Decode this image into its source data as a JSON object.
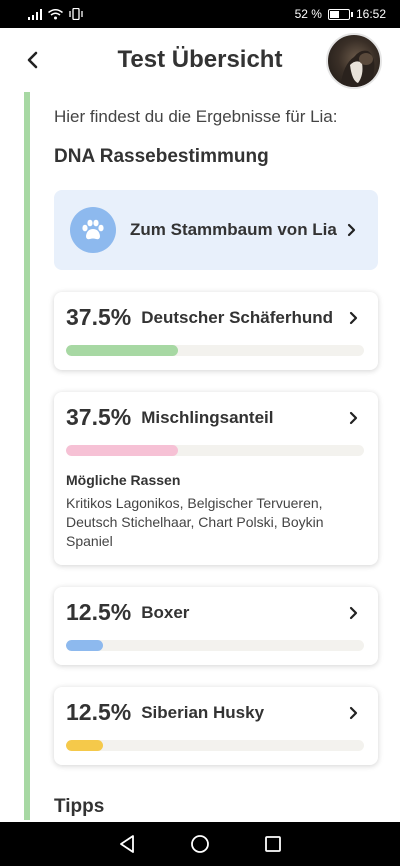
{
  "status": {
    "battery": "52 %",
    "time": "16:52",
    "battery_level": 0.52
  },
  "header": {
    "title": "Test Übersicht"
  },
  "intro": "Hier findest du die Ergebnisse für Lia:",
  "section_title": "DNA Rassebestimmung",
  "pedigree_link": {
    "label": "Zum Stammbaum von Lia"
  },
  "breeds": [
    {
      "percent": "37.5%",
      "name": "Deutscher Schäferhund",
      "fraction": 0.375,
      "color": "#a7d8a3"
    },
    {
      "percent": "37.5%",
      "name": "Mischlingsanteil",
      "fraction": 0.375,
      "color": "#f6c1d5",
      "sub_title": "Mögliche Rassen",
      "sub_text": "Kritikos Lagonikos, Belgischer Tervueren, Deutsch Stichelhaar, Chart Polski, Boykin Spaniel"
    },
    {
      "percent": "12.5%",
      "name": "Boxer",
      "fraction": 0.125,
      "color": "#8db9ee"
    },
    {
      "percent": "12.5%",
      "name": "Siberian Husky",
      "fraction": 0.125,
      "color": "#f5c94a"
    }
  ],
  "tips_title": "Tipps"
}
